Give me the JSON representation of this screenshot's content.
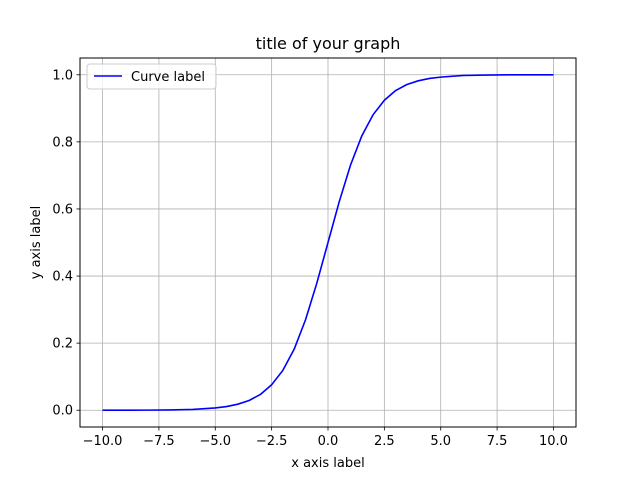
{
  "chart_data": {
    "type": "line",
    "title": "title of your graph",
    "xlabel": "x axis label",
    "ylabel": "y axis label",
    "xlim": [
      -11,
      11
    ],
    "ylim": [
      -0.05,
      1.05
    ],
    "grid": true,
    "legend_position": "top-left",
    "x_ticks": [
      -10.0,
      -7.5,
      -5.0,
      -2.5,
      0.0,
      2.5,
      5.0,
      7.5,
      10.0
    ],
    "x_tick_labels": [
      "−10.0",
      "−7.5",
      "−5.0",
      "−2.5",
      "0.0",
      "2.5",
      "5.0",
      "7.5",
      "10.0"
    ],
    "y_ticks": [
      0.0,
      0.2,
      0.4,
      0.6,
      0.8,
      1.0
    ],
    "y_tick_labels": [
      "0.0",
      "0.2",
      "0.4",
      "0.6",
      "0.8",
      "1.0"
    ],
    "series": [
      {
        "name": "Curve label",
        "color": "#0000ff",
        "x": [
          -10.0,
          -9.0,
          -8.0,
          -7.0,
          -6.0,
          -5.0,
          -4.5,
          -4.0,
          -3.5,
          -3.0,
          -2.5,
          -2.0,
          -1.5,
          -1.0,
          -0.5,
          0.0,
          0.5,
          1.0,
          1.5,
          2.0,
          2.5,
          3.0,
          3.5,
          4.0,
          4.5,
          5.0,
          6.0,
          7.0,
          8.0,
          9.0,
          10.0
        ],
        "y": [
          0.0,
          0.0001,
          0.0003,
          0.0009,
          0.0025,
          0.0067,
          0.011,
          0.018,
          0.029,
          0.047,
          0.076,
          0.119,
          0.182,
          0.269,
          0.378,
          0.5,
          0.622,
          0.731,
          0.818,
          0.881,
          0.924,
          0.953,
          0.971,
          0.982,
          0.989,
          0.993,
          0.998,
          0.999,
          1.0,
          1.0,
          1.0
        ]
      }
    ]
  }
}
